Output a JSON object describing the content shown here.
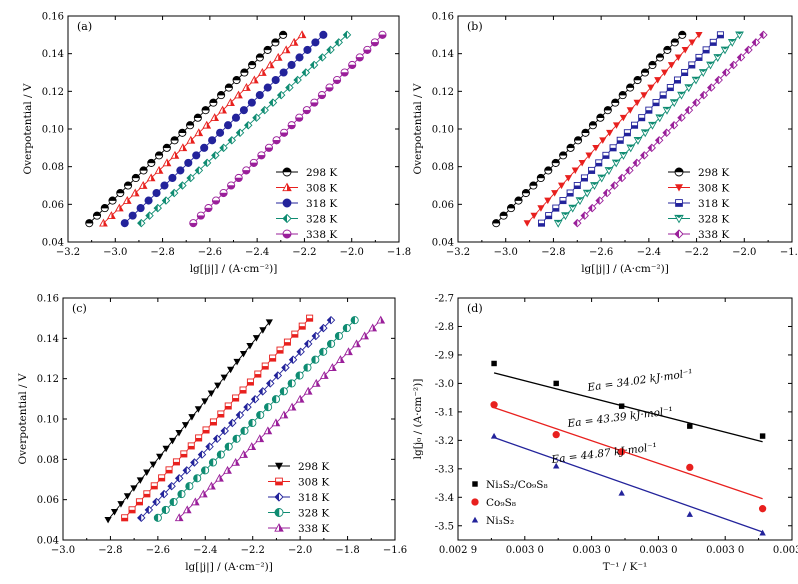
{
  "chart_data": [
    {
      "type": "scatter",
      "panel_label": "(a)",
      "xlabel": "lg[|j|] / (A·cm⁻²)]",
      "ylabel": "Overpotential / V",
      "xlim": [
        -3.2,
        -1.8
      ],
      "ylim": [
        0.04,
        0.16
      ],
      "xticks": [
        "−3.2",
        "−3.0",
        "−2.8",
        "−2.6",
        "−2.4",
        "−2.2",
        "−2.0",
        "−1.8"
      ],
      "yticks": [
        "0.04",
        "0.06",
        "0.08",
        "0.10",
        "0.12",
        "0.14",
        "0.16"
      ],
      "legend_position": "bottom-right",
      "series": [
        {
          "name": "298 K",
          "color": "#000000",
          "marker": "circle-tophalf",
          "x0": -3.11,
          "x1": -2.29,
          "y0": 0.05,
          "y1": 0.15,
          "n": 26
        },
        {
          "name": "308 K",
          "color": "#e8201e",
          "marker": "triangle-half",
          "x0": -3.05,
          "x1": -2.21,
          "y0": 0.05,
          "y1": 0.15,
          "n": 26
        },
        {
          "name": "318 K",
          "color": "#23239b",
          "marker": "circle-full",
          "x0": -2.96,
          "x1": -2.12,
          "y0": 0.05,
          "y1": 0.15,
          "n": 26
        },
        {
          "name": "328 K",
          "color": "#0f8c72",
          "marker": "diamond-half",
          "x0": -2.89,
          "x1": -2.02,
          "y0": 0.05,
          "y1": 0.15,
          "n": 26
        },
        {
          "name": "338 K",
          "color": "#9a1f9a",
          "marker": "circle-bottomhalf",
          "x0": -2.67,
          "x1": -1.87,
          "y0": 0.05,
          "y1": 0.15,
          "n": 26
        }
      ]
    },
    {
      "type": "scatter",
      "panel_label": "(b)",
      "xlabel": "lg[|j|] / (A·cm⁻²)]",
      "ylabel": "Overpotential / V",
      "xlim": [
        -3.2,
        -1.8
      ],
      "ylim": [
        0.04,
        0.16
      ],
      "xticks": [
        "−3.2",
        "−3.0",
        "−2.8",
        "−2.6",
        "−2.4",
        "−2.2",
        "−2.0",
        "−1.8"
      ],
      "yticks": [
        "0.04",
        "0.06",
        "0.08",
        "0.10",
        "0.12",
        "0.14",
        "0.16"
      ],
      "legend_position": "bottom-right",
      "series": [
        {
          "name": "298 K",
          "color": "#000000",
          "marker": "circle-tophalf",
          "x0": -3.04,
          "x1": -2.26,
          "y0": 0.05,
          "y1": 0.15,
          "n": 26
        },
        {
          "name": "308 K",
          "color": "#e8201e",
          "marker": "triangle-down",
          "x0": -2.91,
          "x1": -2.19,
          "y0": 0.05,
          "y1": 0.15,
          "n": 26
        },
        {
          "name": "318 K",
          "color": "#23239b",
          "marker": "square-half",
          "x0": -2.85,
          "x1": -2.1,
          "y0": 0.05,
          "y1": 0.15,
          "n": 26
        },
        {
          "name": "328 K",
          "color": "#0f8c72",
          "marker": "triangle-down-half",
          "x0": -2.78,
          "x1": -2.02,
          "y0": 0.05,
          "y1": 0.15,
          "n": 26
        },
        {
          "name": "338 K",
          "color": "#9a1f9a",
          "marker": "diamond-half",
          "x0": -2.7,
          "x1": -1.92,
          "y0": 0.05,
          "y1": 0.15,
          "n": 26
        }
      ]
    },
    {
      "type": "scatter",
      "panel_label": "(c)",
      "xlabel": "lg[|j|] / (A·cm⁻²)]",
      "ylabel": "Overpotential / V",
      "xlim": [
        -3.0,
        -1.6
      ],
      "ylim": [
        0.04,
        0.16
      ],
      "xticks": [
        "−3.0",
        "−2.8",
        "−2.6",
        "−2.4",
        "−2.2",
        "−2.0",
        "−1.8",
        "−1.6"
      ],
      "yticks": [
        "0.04",
        "0.06",
        "0.08",
        "0.10",
        "0.12",
        "0.14",
        "0.16"
      ],
      "legend_position": "bottom-right",
      "series": [
        {
          "name": "298 K",
          "color": "#000000",
          "marker": "triangle-down-full",
          "x0": -2.81,
          "x1": -2.13,
          "y0": 0.05,
          "y1": 0.148,
          "n": 26
        },
        {
          "name": "308 K",
          "color": "#e8201e",
          "marker": "square-half",
          "x0": -2.74,
          "x1": -1.96,
          "y0": 0.051,
          "y1": 0.15,
          "n": 26
        },
        {
          "name": "318 K",
          "color": "#23239b",
          "marker": "diamond-half",
          "x0": -2.67,
          "x1": -1.87,
          "y0": 0.051,
          "y1": 0.149,
          "n": 26
        },
        {
          "name": "328 K",
          "color": "#0f8c72",
          "marker": "circle-lefthalf",
          "x0": -2.6,
          "x1": -1.77,
          "y0": 0.051,
          "y1": 0.149,
          "n": 26
        },
        {
          "name": "338 K",
          "color": "#9a1f9a",
          "marker": "triangle-half",
          "x0": -2.51,
          "x1": -1.66,
          "y0": 0.051,
          "y1": 0.149,
          "n": 26
        }
      ]
    },
    {
      "type": "scatter",
      "panel_label": "(d)",
      "xlabel": "T⁻¹ / K⁻¹",
      "ylabel": "lg[j₀ / (A·cm⁻²)]",
      "xlim": [
        0.0029,
        0.0034
      ],
      "ylim": [
        -3.55,
        -2.7
      ],
      "xticks": [
        "0.002 9",
        "0.003 0",
        "0.003 0",
        "0.003 0",
        "0.003 0",
        "0.003 4"
      ],
      "yticks": [
        "-2.7",
        "-2.8",
        "-2.9",
        "-3.0",
        "-3.1",
        "-3.2",
        "-3.3",
        "-3.4",
        "-3.5"
      ],
      "legend_position": "bottom-left",
      "series": [
        {
          "name": "Ni₃S₂/Co₉S₈",
          "color": "#000000",
          "marker": "square",
          "x": [
            0.002954,
            0.003047,
            0.003145,
            0.003247,
            0.003356
          ],
          "y": [
            -2.93,
            -3.0,
            -3.08,
            -3.15,
            -3.185
          ],
          "fit": [
            [
              0.002954,
              -2.963
            ],
            [
              0.003356,
              -3.205
            ]
          ],
          "annotation": "Ea = 34.02 kJ·mol⁻¹"
        },
        {
          "name": "Co₉S₈",
          "color": "#e8201e",
          "marker": "circle",
          "x": [
            0.002954,
            0.003047,
            0.003145,
            0.003247,
            0.003356
          ],
          "y": [
            -3.075,
            -3.18,
            -3.24,
            -3.295,
            -3.44
          ],
          "fit": [
            [
              0.002954,
              -3.085
            ],
            [
              0.003356,
              -3.405
            ]
          ],
          "annotation": "Ea = 43.39 kJ·mol⁻¹"
        },
        {
          "name": "Ni₃S₂",
          "color": "#23239b",
          "marker": "triangle",
          "x": [
            0.002954,
            0.003047,
            0.003145,
            0.003247,
            0.003356
          ],
          "y": [
            -3.185,
            -3.29,
            -3.385,
            -3.46,
            -3.525
          ],
          "fit": [
            [
              0.002954,
              -3.19
            ],
            [
              0.003356,
              -3.522
            ]
          ],
          "annotation": "Ea = 44.87 kJ·mol⁻¹"
        }
      ]
    }
  ]
}
